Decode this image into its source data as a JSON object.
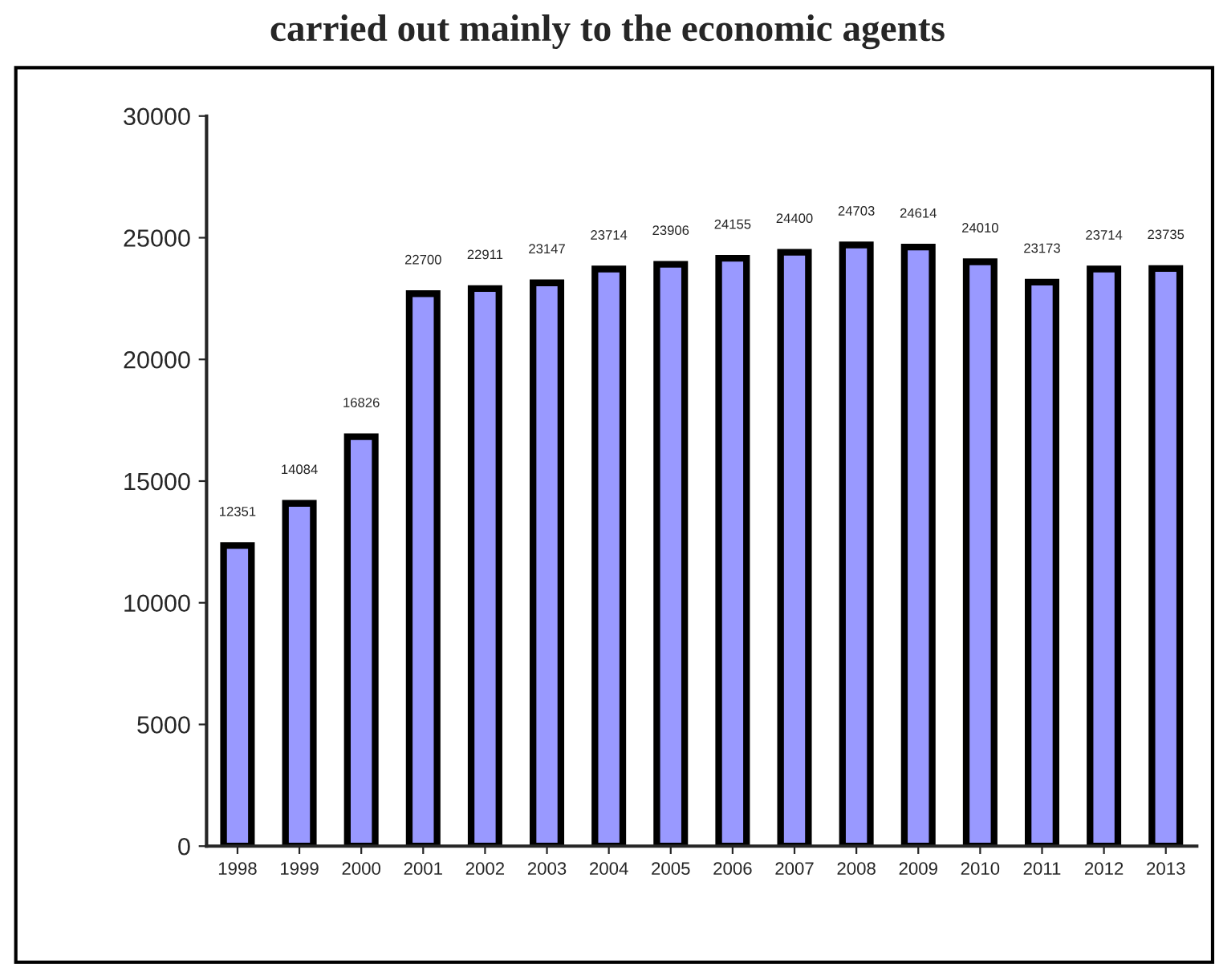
{
  "chart_data": {
    "type": "bar",
    "title": "carried out mainly to the economic agents",
    "categories": [
      "1998",
      "1999",
      "2000",
      "2001",
      "2002",
      "2003",
      "2004",
      "2005",
      "2006",
      "2007",
      "2008",
      "2009",
      "2010",
      "2011",
      "2012",
      "2013"
    ],
    "values": [
      12351,
      14084,
      16826,
      22700,
      22911,
      23147,
      23714,
      23906,
      24155,
      24400,
      24703,
      24614,
      24010,
      23173,
      23714,
      23735
    ],
    "color": "#9999ff",
    "ylim": [
      0,
      30000
    ],
    "yticks": [
      0,
      5000,
      10000,
      15000,
      20000,
      25000,
      30000
    ],
    "grid": false,
    "data_labels": true
  }
}
